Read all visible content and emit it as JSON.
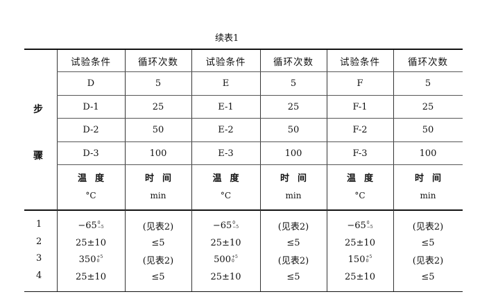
{
  "title": "续表1",
  "side_label": [
    "步",
    "骤"
  ],
  "headers": [
    "试验条件",
    "循环次数",
    "试验条件",
    "循环次数",
    "试验条件",
    "循环次数"
  ],
  "step_rows": [
    [
      "D",
      "5",
      "E",
      "5",
      "F",
      "5"
    ],
    [
      "D-1",
      "25",
      "E-1",
      "25",
      "F-1",
      "25"
    ],
    [
      "D-2",
      "50",
      "E-2",
      "50",
      "F-2",
      "50"
    ],
    [
      "D-3",
      "100",
      "E-3",
      "100",
      "F-3",
      "100"
    ]
  ],
  "unit_row": [
    {
      "name": "温度",
      "unit": "°C"
    },
    {
      "name": "时间",
      "unit": "min"
    },
    {
      "name": "温度",
      "unit": "°C"
    },
    {
      "name": "时间",
      "unit": "min"
    },
    {
      "name": "温度",
      "unit": "°C"
    },
    {
      "name": "时间",
      "unit": "min"
    }
  ],
  "data_rows": [
    {
      "index": "1",
      "cells": [
        {
          "base": "−65",
          "upper": "0",
          "lower": "−5"
        },
        {
          "base": "(见表2)"
        },
        {
          "base": "−65",
          "upper": "0",
          "lower": "−5"
        },
        {
          "base": "(见表2)"
        },
        {
          "base": "−65",
          "upper": "0",
          "lower": "−5"
        },
        {
          "base": "(见表2)"
        }
      ]
    },
    {
      "index": "2",
      "cells": [
        {
          "base": "25±10"
        },
        {
          "base": "≤5"
        },
        {
          "base": "25±10"
        },
        {
          "base": "≤5"
        },
        {
          "base": "25±10"
        },
        {
          "base": "≤5"
        }
      ]
    },
    {
      "index": "3",
      "cells": [
        {
          "base": "350",
          "upper": "+5",
          "lower": "0"
        },
        {
          "base": "(见表2)"
        },
        {
          "base": "500",
          "upper": "+5",
          "lower": "0"
        },
        {
          "base": "(见表2)"
        },
        {
          "base": "150",
          "upper": "+5",
          "lower": "0"
        },
        {
          "base": "(见表2)"
        }
      ]
    },
    {
      "index": "4",
      "cells": [
        {
          "base": "25±10"
        },
        {
          "base": "≤5"
        },
        {
          "base": "25±10"
        },
        {
          "base": "≤5"
        },
        {
          "base": "25±10"
        },
        {
          "base": "≤5"
        }
      ]
    }
  ]
}
